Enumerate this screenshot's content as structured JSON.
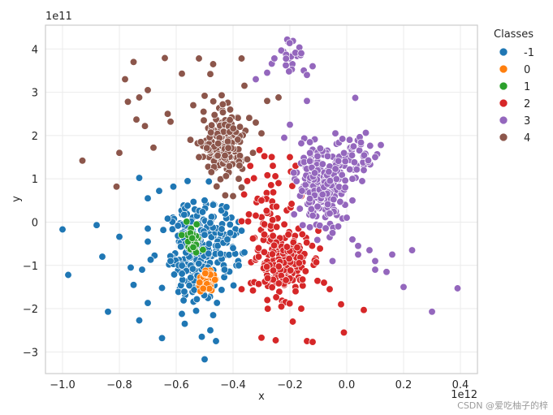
{
  "chart_data": {
    "type": "scatter",
    "xlabel": "x",
    "ylabel": "y",
    "x_exponent": "1e12",
    "y_exponent": "1e11",
    "x_unit_scale": 1000000000000.0,
    "y_unit_scale": 100000000000.0,
    "xlim": [
      -1.06,
      0.46
    ],
    "ylim": [
      -3.5,
      4.55
    ],
    "x_ticks": [
      -1.0,
      -0.8,
      -0.6,
      -0.4,
      -0.2,
      0.0,
      0.2,
      0.4
    ],
    "x_tick_labels": [
      "−1.0",
      "−0.8",
      "−0.6",
      "−0.4",
      "−0.2",
      "0.0",
      "0.2",
      "0.4"
    ],
    "y_ticks": [
      -3,
      -2,
      -1,
      0,
      1,
      2,
      3,
      4
    ],
    "y_tick_labels": [
      "−3",
      "−2",
      "−1",
      "0",
      "1",
      "2",
      "3",
      "4"
    ],
    "grid": true,
    "legend": {
      "title": "Classes",
      "placement": "outside-right-top",
      "entries": [
        {
          "label": "-1",
          "color": "#1f77b4"
        },
        {
          "label": "0",
          "color": "#ff7f0e"
        },
        {
          "label": "1",
          "color": "#2ca02c"
        },
        {
          "label": "2",
          "color": "#d62728"
        },
        {
          "label": "3",
          "color": "#9467bd"
        },
        {
          "label": "4",
          "color": "#8c564b"
        }
      ]
    },
    "series": [
      {
        "name": "-1",
        "color": "#1f77b4",
        "clusters": [
          {
            "cx": -0.53,
            "cy": -0.7,
            "sx": 0.045,
            "sy": 0.55,
            "n": 220
          },
          {
            "cx": -0.46,
            "cy": -0.5,
            "sx": 0.04,
            "sy": 0.5,
            "n": 60
          }
        ],
        "points": [
          [
            -1.0,
            -0.17
          ],
          [
            -0.98,
            -1.22
          ],
          [
            -0.88,
            -0.07
          ],
          [
            -0.86,
            -0.8
          ],
          [
            -0.84,
            -2.07
          ],
          [
            -0.8,
            -0.34
          ],
          [
            -0.76,
            -1.05
          ],
          [
            -0.75,
            -1.45
          ],
          [
            -0.73,
            -2.27
          ],
          [
            -0.72,
            -1.1
          ],
          [
            -0.73,
            1.02
          ],
          [
            -0.7,
            0.55
          ],
          [
            -0.7,
            -0.15
          ],
          [
            -0.7,
            -0.45
          ],
          [
            -0.69,
            -0.87
          ],
          [
            -0.7,
            -1.87
          ],
          [
            -0.66,
            0.72
          ],
          [
            -0.65,
            -1.52
          ],
          [
            -0.63,
            0.08
          ],
          [
            -0.62,
            -0.9
          ],
          [
            -0.61,
            0.82
          ],
          [
            -0.58,
            -2.12
          ],
          [
            -0.57,
            -2.35
          ],
          [
            -0.56,
            0.95
          ],
          [
            -0.56,
            0.38
          ],
          [
            -0.53,
            -2.05
          ],
          [
            -0.51,
            -2.65
          ],
          [
            -0.5,
            -3.17
          ],
          [
            -0.48,
            -2.5
          ],
          [
            -0.47,
            -2.15
          ],
          [
            -0.46,
            -2.75
          ],
          [
            -0.42,
            -0.4
          ],
          [
            -0.4,
            -0.6
          ],
          [
            -0.38,
            -1.0
          ],
          [
            -0.36,
            -0.7
          ],
          [
            -0.43,
            -1.1
          ],
          [
            -0.41,
            -0.25
          ],
          [
            -0.37,
            -0.2
          ],
          [
            -0.65,
            -2.68
          ],
          [
            -0.47,
            0.4
          ],
          [
            -0.5,
            0.5
          ]
        ]
      },
      {
        "name": "0",
        "color": "#ff7f0e",
        "clusters": [
          {
            "cx": -0.495,
            "cy": -1.36,
            "sx": 0.014,
            "sy": 0.12,
            "n": 45
          }
        ],
        "points": []
      },
      {
        "name": "1",
        "color": "#2ca02c",
        "clusters": [
          {
            "cx": -0.545,
            "cy": -0.45,
            "sx": 0.015,
            "sy": 0.17,
            "n": 28
          }
        ],
        "points": [
          [
            -0.53,
            -0.7
          ],
          [
            -0.54,
            -0.58
          ]
        ]
      },
      {
        "name": "2",
        "color": "#d62728",
        "clusters": [
          {
            "cx": -0.225,
            "cy": -0.95,
            "sx": 0.045,
            "sy": 0.35,
            "n": 200
          },
          {
            "cx": -0.27,
            "cy": 0.4,
            "sx": 0.05,
            "sy": 0.6,
            "n": 40
          }
        ],
        "points": [
          [
            -0.37,
            -1.55
          ],
          [
            -0.33,
            -1.58
          ],
          [
            -0.31,
            -1.43
          ],
          [
            -0.3,
            -2.67
          ],
          [
            -0.25,
            -2.73
          ],
          [
            -0.23,
            -1.95
          ],
          [
            -0.19,
            -2.3
          ],
          [
            -0.18,
            -1.6
          ],
          [
            -0.16,
            -2.0
          ],
          [
            -0.14,
            -2.75
          ],
          [
            -0.12,
            -2.77
          ],
          [
            -0.08,
            -1.4
          ],
          [
            -0.06,
            -1.55
          ],
          [
            -0.02,
            -1.9
          ],
          [
            -0.01,
            -2.55
          ],
          [
            0.06,
            -2.03
          ],
          [
            -0.31,
            -0.8
          ],
          [
            -0.17,
            -0.15
          ],
          [
            -0.1,
            -0.2
          ],
          [
            -0.32,
            0.15
          ],
          [
            -0.35,
            0.95
          ],
          [
            -0.3,
            0.5
          ],
          [
            -0.2,
            1.5
          ],
          [
            -0.18,
            1.3
          ],
          [
            -0.26,
            1.3
          ],
          [
            -0.24,
            0.9
          ],
          [
            -0.16,
            0.6
          ],
          [
            -0.33,
            -0.38
          ],
          [
            -0.37,
            0.02
          ],
          [
            -0.29,
            -0.05
          ]
        ]
      },
      {
        "name": "3",
        "color": "#9467bd",
        "clusters": [
          {
            "cx": -0.09,
            "cy": 0.85,
            "sx": 0.04,
            "sy": 0.38,
            "n": 240
          },
          {
            "cx": 0.04,
            "cy": 1.55,
            "sx": 0.04,
            "sy": 0.3,
            "n": 40
          },
          {
            "cx": -0.2,
            "cy": 3.9,
            "sx": 0.025,
            "sy": 0.22,
            "n": 22
          }
        ],
        "points": [
          [
            0.03,
            2.87
          ],
          [
            -0.04,
            2.05
          ],
          [
            0.01,
            1.9
          ],
          [
            0.12,
            1.78
          ],
          [
            0.1,
            1.5
          ],
          [
            0.02,
            0.5
          ],
          [
            0.0,
            0.1
          ],
          [
            -0.03,
            -0.1
          ],
          [
            0.02,
            -0.4
          ],
          [
            0.08,
            -0.65
          ],
          [
            0.04,
            -0.75
          ],
          [
            0.1,
            -0.9
          ],
          [
            0.1,
            -1.1
          ],
          [
            0.16,
            -0.75
          ],
          [
            0.2,
            -1.5
          ],
          [
            0.23,
            -0.65
          ],
          [
            0.3,
            -2.07
          ],
          [
            0.39,
            -1.53
          ],
          [
            -0.05,
            -0.9
          ],
          [
            -0.06,
            -0.35
          ],
          [
            -0.2,
            2.25
          ],
          [
            -0.22,
            1.95
          ],
          [
            -0.16,
            1.82
          ],
          [
            -0.14,
            2.8
          ],
          [
            -0.32,
            3.3
          ],
          [
            -0.28,
            3.45
          ],
          [
            -0.12,
            3.6
          ],
          [
            -0.14,
            3.4
          ],
          [
            -0.16,
            3.9
          ],
          [
            0.06,
            1.2
          ],
          [
            0.14,
            -1.15
          ],
          [
            0.04,
            -0.55
          ],
          [
            -0.05,
            -0.25
          ],
          [
            0.02,
            1.0
          ],
          [
            -0.06,
            0.2
          ]
        ]
      },
      {
        "name": "4",
        "color": "#8c564b",
        "clusters": [
          {
            "cx": -0.43,
            "cy": 1.8,
            "sx": 0.035,
            "sy": 0.35,
            "n": 200
          }
        ],
        "points": [
          [
            -0.93,
            1.42
          ],
          [
            -0.81,
            0.82
          ],
          [
            -0.8,
            1.6
          ],
          [
            -0.78,
            3.3
          ],
          [
            -0.77,
            2.78
          ],
          [
            -0.75,
            3.7
          ],
          [
            -0.74,
            2.37
          ],
          [
            -0.73,
            2.88
          ],
          [
            -0.71,
            2.22
          ],
          [
            -0.7,
            3.05
          ],
          [
            -0.68,
            1.72
          ],
          [
            -0.64,
            3.79
          ],
          [
            -0.63,
            2.5
          ],
          [
            -0.62,
            2.32
          ],
          [
            -0.58,
            3.43
          ],
          [
            -0.54,
            2.7
          ],
          [
            -0.52,
            3.78
          ],
          [
            -0.5,
            2.92
          ],
          [
            -0.48,
            3.42
          ],
          [
            -0.47,
            3.65
          ],
          [
            -0.44,
            2.93
          ],
          [
            -0.41,
            2.6
          ],
          [
            -0.38,
            1.0
          ],
          [
            -0.37,
            3.78
          ],
          [
            -0.36,
            3.15
          ],
          [
            -0.33,
            1.6
          ],
          [
            -0.3,
            2.05
          ],
          [
            -0.28,
            2.8
          ],
          [
            -0.24,
            2.88
          ],
          [
            -0.55,
            1.9
          ],
          [
            -0.52,
            1.5
          ],
          [
            -0.35,
            1.45
          ],
          [
            -0.32,
            2.3
          ],
          [
            -0.37,
            0.8
          ],
          [
            -0.4,
            0.6
          ]
        ]
      }
    ]
  },
  "watermark": "CSDN @爱吃柚子的梓"
}
